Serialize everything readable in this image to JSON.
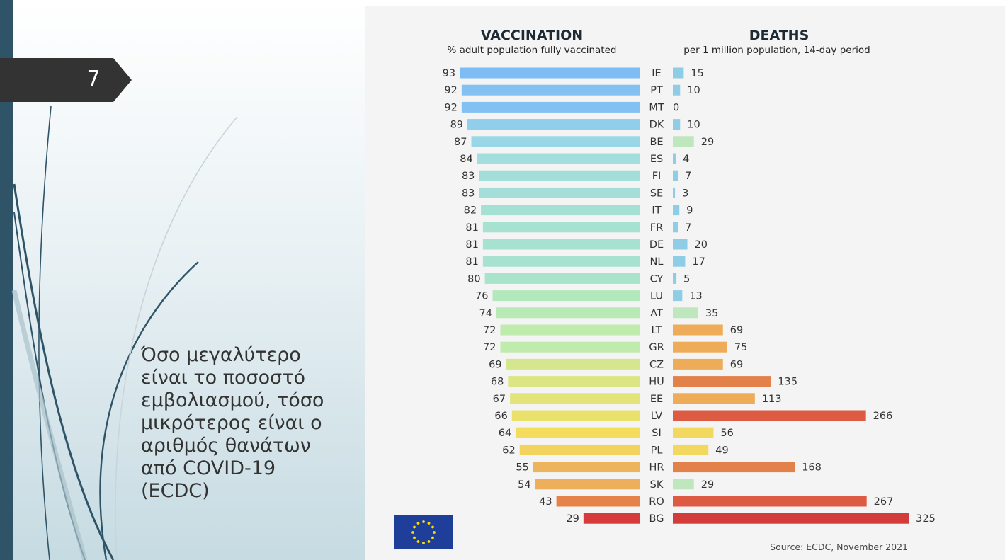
{
  "slide": {
    "page_number": "7",
    "body_text": "Όσο μεγαλύτερο\nείναι το ποσοστό\nεμβολιασμού, τόσο\nμικρότερος είναι ο\nαριθμός θανάτων\nαπό COVID-19\n(ECDC)"
  },
  "chart_data": {
    "type": "bar",
    "vaccination": {
      "title": "VACCINATION",
      "subtitle": "% adult population fully vaccinated"
    },
    "deaths": {
      "title": "DEATHS",
      "subtitle": "per 1 million population, 14-day period"
    },
    "categories": [
      "IE",
      "PT",
      "MT",
      "DK",
      "BE",
      "ES",
      "FI",
      "SE",
      "IT",
      "FR",
      "DE",
      "NL",
      "CY",
      "LU",
      "AT",
      "LT",
      "GR",
      "CZ",
      "HU",
      "EE",
      "LV",
      "SI",
      "PL",
      "HR",
      "SK",
      "RO",
      "BG"
    ],
    "series": [
      {
        "name": "VACCINATION",
        "values": [
          93,
          92,
          92,
          89,
          87,
          84,
          83,
          83,
          82,
          81,
          81,
          81,
          80,
          76,
          74,
          72,
          72,
          69,
          68,
          67,
          66,
          64,
          62,
          55,
          54,
          43,
          29
        ]
      },
      {
        "name": "DEATHS",
        "values": [
          15,
          10,
          0,
          10,
          29,
          4,
          7,
          3,
          9,
          7,
          20,
          17,
          5,
          13,
          35,
          69,
          75,
          69,
          135,
          113,
          266,
          56,
          49,
          168,
          29,
          267,
          325
        ]
      }
    ],
    "source": "Source: ECDC, November 2021"
  }
}
